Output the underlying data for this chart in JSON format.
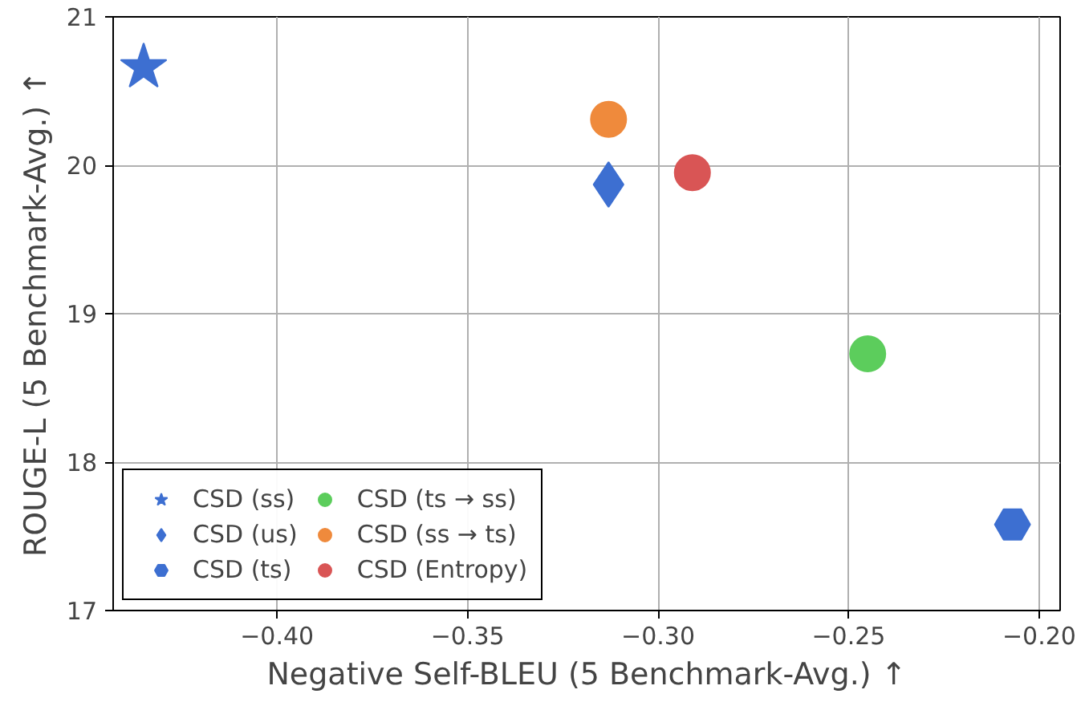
{
  "chart_data": {
    "type": "scatter",
    "xlabel": "Negative Self-BLEU (5 Benchmark-Avg.) ↑",
    "ylabel": "ROUGE-L (5 Benchmark-Avg.) ↑",
    "xlim": [
      -0.443,
      -0.1945
    ],
    "ylim": [
      17,
      21
    ],
    "xticks": [
      {
        "value": -0.4,
        "label": "−0.40"
      },
      {
        "value": -0.35,
        "label": "−0.35"
      },
      {
        "value": -0.3,
        "label": "−0.30"
      },
      {
        "value": -0.25,
        "label": "−0.25"
      },
      {
        "value": -0.2,
        "label": "−0.20"
      }
    ],
    "yticks": [
      17,
      18,
      19,
      20,
      21
    ],
    "grid": true,
    "legend": "bottom left",
    "series": [
      {
        "name": "CSD (ss)",
        "color": "#3d6fd1",
        "marker": "star",
        "x": [
          -0.435
        ],
        "values": [
          20.66
        ]
      },
      {
        "name": "CSD (us)",
        "color": "#3d6fd1",
        "marker": "diamond",
        "x": [
          -0.313
        ],
        "values": [
          19.87
        ]
      },
      {
        "name": "CSD (ts)",
        "color": "#3d6fd1",
        "x": [
          -0.207
        ],
        "values": [
          17.58
        ]
      },
      {
        "name": "CSD (ts → ss)",
        "color": "#5ccd5c",
        "marker": "circle",
        "x": [
          -0.245
        ],
        "values": [
          18.73
        ]
      },
      {
        "name": "CSD (ss → ts)",
        "color": "#ef8a3c",
        "marker": "circle",
        "x": [
          -0.313
        ],
        "values": [
          20.31
        ]
      },
      {
        "name": "CSD (Entropy)",
        "color": "#d95555",
        "marker": "circle",
        "x": [
          -0.291
        ],
        "values": [
          19.95
        ]
      }
    ]
  }
}
